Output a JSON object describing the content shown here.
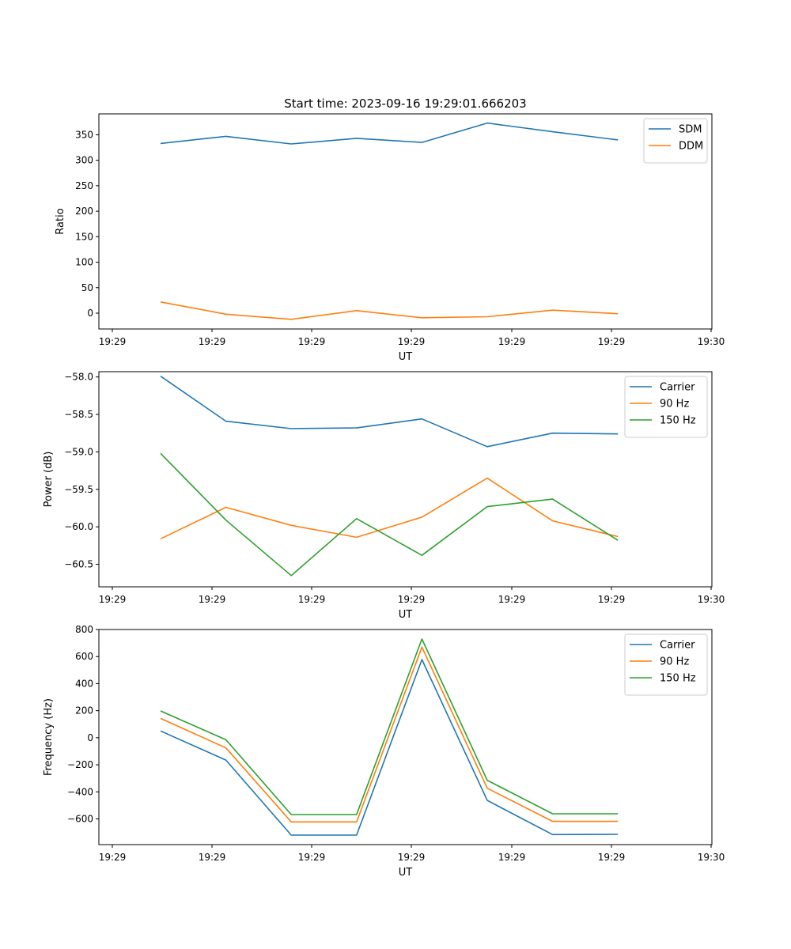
{
  "figure": {
    "title": "Start time: 2023-09-16 19:29:01.666203"
  },
  "chart_data": [
    {
      "type": "line",
      "xlabel": "UT",
      "ylabel": "Ratio",
      "x_tick_labels": [
        "19:29",
        "19:29",
        "19:29",
        "19:29",
        "19:29",
        "19:29",
        "19:30"
      ],
      "ylim": [
        -31,
        391
      ],
      "yticks": [
        0,
        50,
        100,
        150,
        200,
        250,
        300,
        350
      ],
      "y_tick_labels": [
        "0",
        "50",
        "100",
        "150",
        "200",
        "250",
        "300",
        "350"
      ],
      "legend": "top-right",
      "series": [
        {
          "name": "SDM",
          "color": "#1f77b4",
          "values": [
            333,
            347,
            332,
            343,
            335,
            373,
            356,
            340
          ]
        },
        {
          "name": "DDM",
          "color": "#ff7f0e",
          "values": [
            22,
            -2,
            -12,
            5,
            -9,
            -7,
            6,
            -1
          ]
        }
      ]
    },
    {
      "type": "line",
      "xlabel": "UT",
      "ylabel": "Power (dB)",
      "x_tick_labels": [
        "19:29",
        "19:29",
        "19:29",
        "19:29",
        "19:29",
        "19:29",
        "19:30"
      ],
      "ylim": [
        -60.8,
        -57.93
      ],
      "yticks": [
        -60.5,
        -60.0,
        -59.5,
        -59.0,
        -58.5,
        -58.0
      ],
      "y_tick_labels": [
        "−60.5",
        "−60.0",
        "−59.5",
        "−59.0",
        "−58.5",
        "−58.0"
      ],
      "legend": "top-right",
      "series": [
        {
          "name": "Carrier",
          "color": "#1f77b4",
          "values": [
            -57.99,
            -58.59,
            -58.69,
            -58.68,
            -58.56,
            -58.93,
            -58.75,
            -58.76
          ]
        },
        {
          "name": "90 Hz",
          "color": "#ff7f0e",
          "values": [
            -60.16,
            -59.74,
            -59.98,
            -60.14,
            -59.87,
            -59.35,
            -59.92,
            -60.13
          ]
        },
        {
          "name": "150 Hz",
          "color": "#2ca02c",
          "values": [
            -59.02,
            -59.91,
            -60.65,
            -59.89,
            -60.38,
            -59.73,
            -59.63,
            -60.18
          ]
        }
      ]
    },
    {
      "type": "line",
      "xlabel": "UT",
      "ylabel": "Frequency (Hz)",
      "x_tick_labels": [
        "19:29",
        "19:29",
        "19:29",
        "19:29",
        "19:29",
        "19:29",
        "19:30"
      ],
      "ylim": [
        -790,
        800
      ],
      "yticks": [
        -600,
        -400,
        -200,
        0,
        200,
        400,
        600,
        800
      ],
      "y_tick_labels": [
        "−600",
        "−400",
        "−200",
        "0",
        "200",
        "400",
        "600",
        "800"
      ],
      "legend": "top-right",
      "series": [
        {
          "name": "Carrier",
          "color": "#1f77b4",
          "values": [
            50,
            -165,
            -720,
            -720,
            578,
            -463,
            -716,
            -714
          ]
        },
        {
          "name": "90 Hz",
          "color": "#ff7f0e",
          "values": [
            143,
            -75,
            -622,
            -622,
            670,
            -373,
            -618,
            -618
          ]
        },
        {
          "name": "150 Hz",
          "color": "#2ca02c",
          "values": [
            198,
            -15,
            -568,
            -568,
            730,
            -315,
            -562,
            -562
          ]
        }
      ]
    }
  ]
}
